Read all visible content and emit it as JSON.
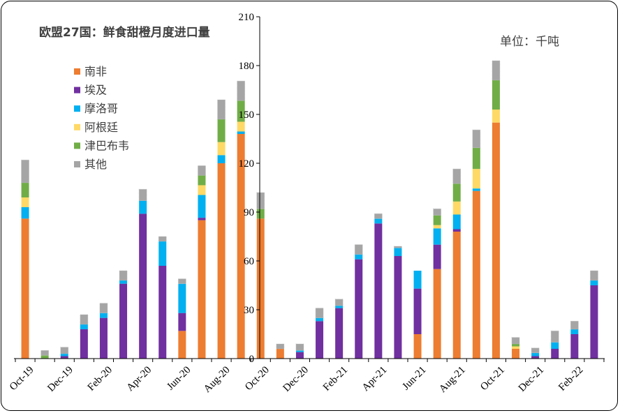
{
  "chart_data": {
    "type": "bar",
    "stacked": true,
    "title": "欧盟27国：鲜食甜橙月度进口量",
    "unit_label": "单位：千吨",
    "ylim": [
      0,
      210
    ],
    "yticks": [
      0,
      30,
      60,
      90,
      120,
      150,
      180,
      210
    ],
    "categories": [
      "Oct-19",
      "Nov-19",
      "Dec-19",
      "Jan-20",
      "Feb-20",
      "Mar-20",
      "Apr-20",
      "May-20",
      "Jun-20",
      "Jul-20",
      "Aug-20",
      "Sep-20",
      "Oct-20",
      "Nov-20",
      "Dec-20",
      "Jan-21",
      "Feb-21",
      "Mar-21",
      "Apr-21",
      "May-21",
      "Jun-21",
      "Jul-21",
      "Aug-21",
      "Sep-21",
      "Oct-21",
      "Nov-21",
      "Dec-21",
      "Jan-22",
      "Feb-22",
      "Mar-22"
    ],
    "x_tick_labels": [
      "Oct-19",
      "Dec-19",
      "Feb-20",
      "Apr-20",
      "Jun-20",
      "Aug-20",
      "Oct-20",
      "Dec-20",
      "Feb-21",
      "Apr-21",
      "Jun-21",
      "Aug-21",
      "Oct-21",
      "Dec-21",
      "Feb-22"
    ],
    "legend_position": "top-left",
    "series": [
      {
        "name": "南非",
        "color": "#ED7D31",
        "values": [
          86,
          0,
          0,
          0,
          0,
          0,
          0,
          0,
          17,
          85,
          120,
          138,
          86,
          6,
          0,
          0,
          0,
          0,
          0,
          0,
          15,
          55,
          78,
          103,
          145,
          6,
          0,
          0,
          0,
          0
        ]
      },
      {
        "name": "埃及",
        "color": "#7030A0",
        "values": [
          0,
          0,
          1.5,
          18,
          25,
          46,
          89,
          57,
          11,
          1.5,
          0,
          0,
          0,
          0,
          4,
          23,
          31,
          61,
          83,
          63,
          28,
          15,
          1.5,
          0,
          0,
          0,
          1.5,
          6,
          15,
          45
        ]
      },
      {
        "name": "摩洛哥",
        "color": "#00B0F0",
        "values": [
          7,
          0,
          1.5,
          3,
          3,
          2,
          8,
          15,
          18,
          14,
          5,
          1.5,
          0,
          0,
          1,
          2,
          1.5,
          3,
          3,
          5,
          11,
          10,
          9,
          1.5,
          0,
          0,
          2,
          4,
          3,
          3
        ]
      },
      {
        "name": "阿根廷",
        "color": "#FFD966",
        "values": [
          6,
          0,
          0,
          0,
          0,
          0,
          0,
          0,
          0,
          6,
          8,
          6,
          0,
          0,
          0,
          0,
          0,
          0,
          0,
          0,
          0,
          2,
          8,
          12,
          8,
          1.5,
          0,
          0,
          0,
          0
        ]
      },
      {
        "name": "津巴布韦",
        "color": "#70AD47",
        "values": [
          9,
          2,
          0,
          0,
          0,
          0,
          0,
          0,
          0,
          6,
          14,
          13,
          6,
          0,
          0,
          0,
          0,
          0,
          0,
          0,
          0,
          6,
          11,
          13,
          18,
          1.5,
          0,
          0,
          0,
          0
        ]
      },
      {
        "name": "其他",
        "color": "#A5A5A5",
        "values": [
          14,
          3,
          4,
          6,
          6,
          6,
          7,
          3,
          3,
          6,
          12,
          12,
          10,
          3,
          4,
          6,
          4,
          6,
          3,
          1,
          0,
          4,
          9,
          11,
          12,
          4,
          3,
          7,
          5,
          6
        ]
      }
    ]
  }
}
